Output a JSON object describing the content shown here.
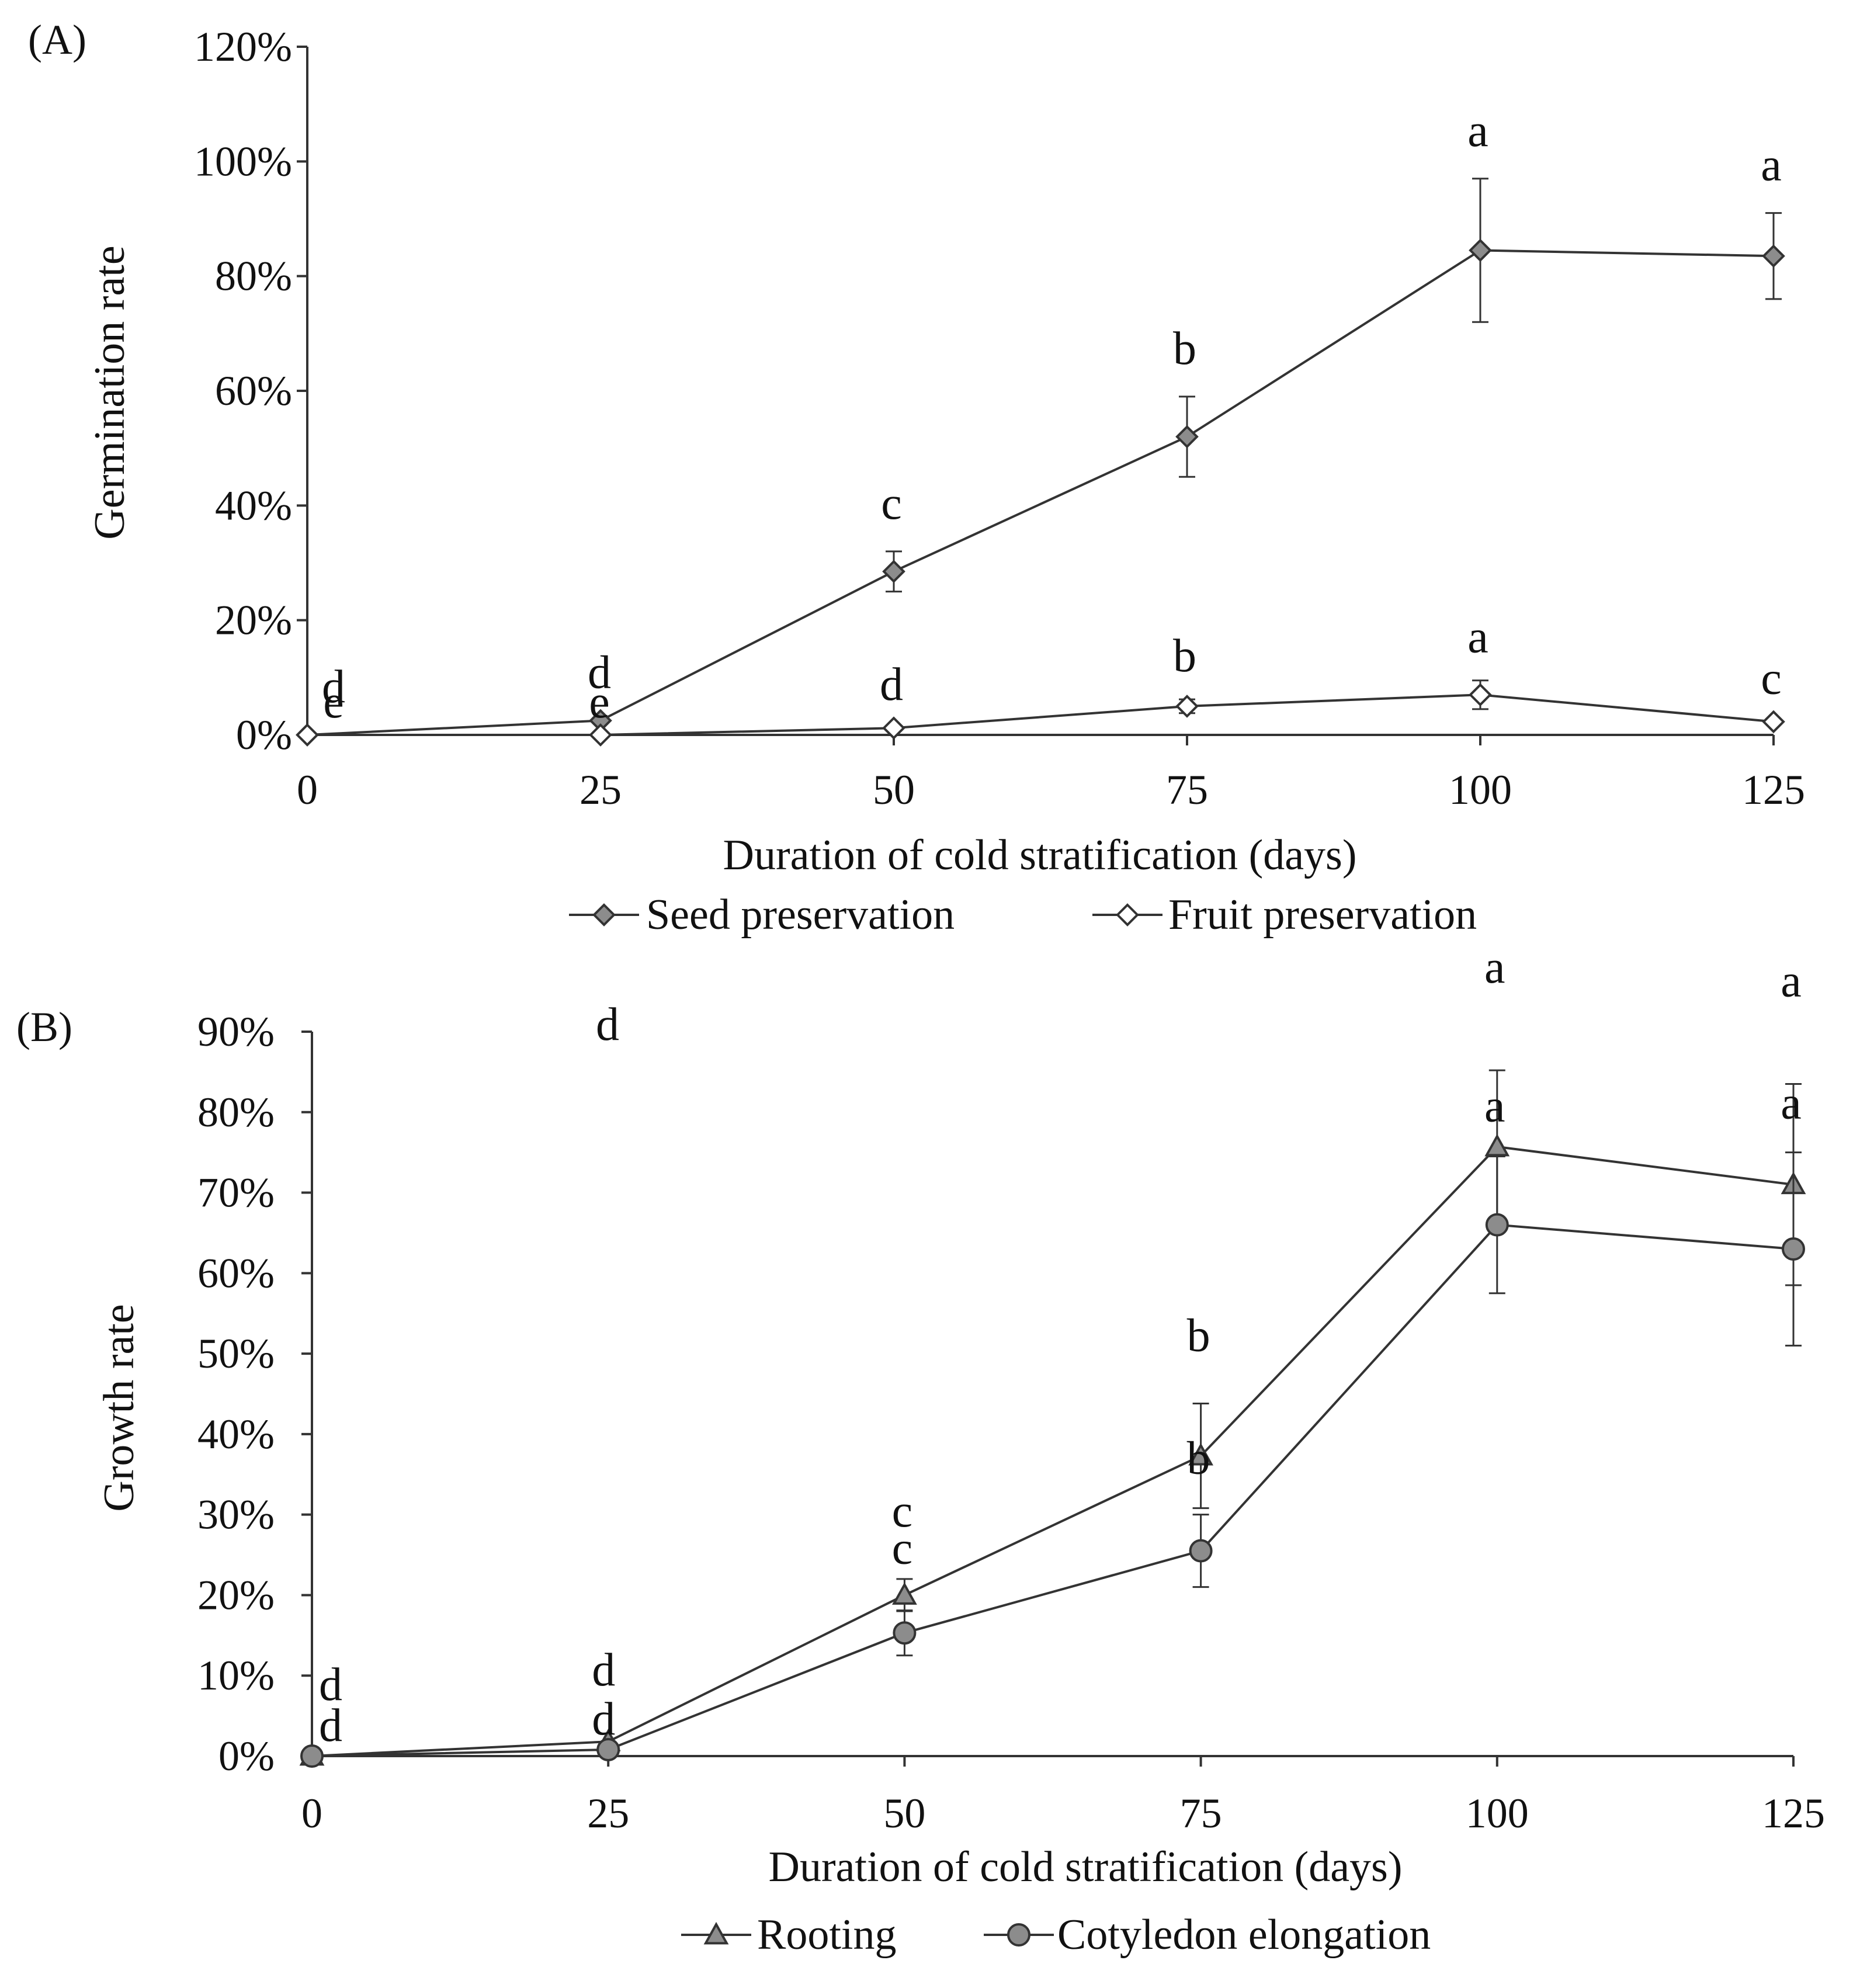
{
  "chart_data": [
    {
      "panel_label": "(A)",
      "type": "line",
      "xlabel": "Duration of cold stratification (days)",
      "ylabel": "Germination rate",
      "x": [
        0,
        25,
        50,
        75,
        100,
        125
      ],
      "x_ticks": [
        "0",
        "25",
        "50",
        "75",
        "100",
        "125"
      ],
      "ylim": [
        0,
        120
      ],
      "y_ticks": [
        "0%",
        "20%",
        "40%",
        "60%",
        "80%",
        "100%",
        "120%"
      ],
      "y_tick_values": [
        0,
        20,
        40,
        60,
        80,
        100,
        120
      ],
      "legend_position": "bottom",
      "series": [
        {
          "name": "Seed preservation",
          "marker": "diamond",
          "fill": "#8c8c8c",
          "values": [
            0,
            2.5,
            28.5,
            52,
            84.5,
            83.5
          ],
          "errors": [
            0,
            0,
            3.5,
            7,
            12.5,
            7.5
          ],
          "letters": [
            "d",
            "d",
            "c",
            "b",
            "a",
            "a"
          ]
        },
        {
          "name": "Fruit preservation",
          "marker": "diamond-open",
          "fill": "#ffffff",
          "values": [
            0,
            0,
            1.2,
            5,
            7,
            2.3
          ],
          "errors": [
            0,
            0,
            0,
            1.2,
            2.5,
            0
          ],
          "letters": [
            "e",
            "e",
            "d",
            "b",
            "a",
            "c"
          ]
        }
      ]
    },
    {
      "panel_label": "(B)",
      "type": "line",
      "xlabel": "Duration of cold stratification (days)",
      "ylabel": "Growth rate",
      "x": [
        0,
        25,
        50,
        75,
        100,
        125
      ],
      "x_ticks": [
        "0",
        "25",
        "50",
        "75",
        "100",
        "125"
      ],
      "ylim": [
        0,
        90
      ],
      "y_ticks": [
        "0%",
        "10%",
        "20%",
        "30%",
        "40%",
        "50%",
        "60%",
        "70%",
        "80%",
        "90%"
      ],
      "y_tick_values": [
        0,
        10,
        20,
        30,
        40,
        50,
        60,
        70,
        80,
        90
      ],
      "legend_position": "bottom",
      "stray_letter": "d",
      "series": [
        {
          "name": "Rooting",
          "marker": "triangle",
          "fill": "#8c8c8c",
          "values": [
            0,
            1.8,
            20,
            37.3,
            75.7,
            71
          ],
          "errors": [
            0,
            0,
            2,
            6.5,
            9.5,
            12.5
          ],
          "letters": [
            "d",
            "d",
            "c",
            "b",
            "a",
            "a"
          ]
        },
        {
          "name": "Cotyledon elongation",
          "marker": "circle",
          "fill": "#8c8c8c",
          "values": [
            0,
            0.8,
            15.3,
            25.5,
            66,
            63
          ],
          "errors": [
            0,
            0,
            2.8,
            4.5,
            8.5,
            12
          ],
          "letters": [
            "d",
            "d",
            "c",
            "b",
            "a",
            "a"
          ]
        }
      ]
    }
  ]
}
